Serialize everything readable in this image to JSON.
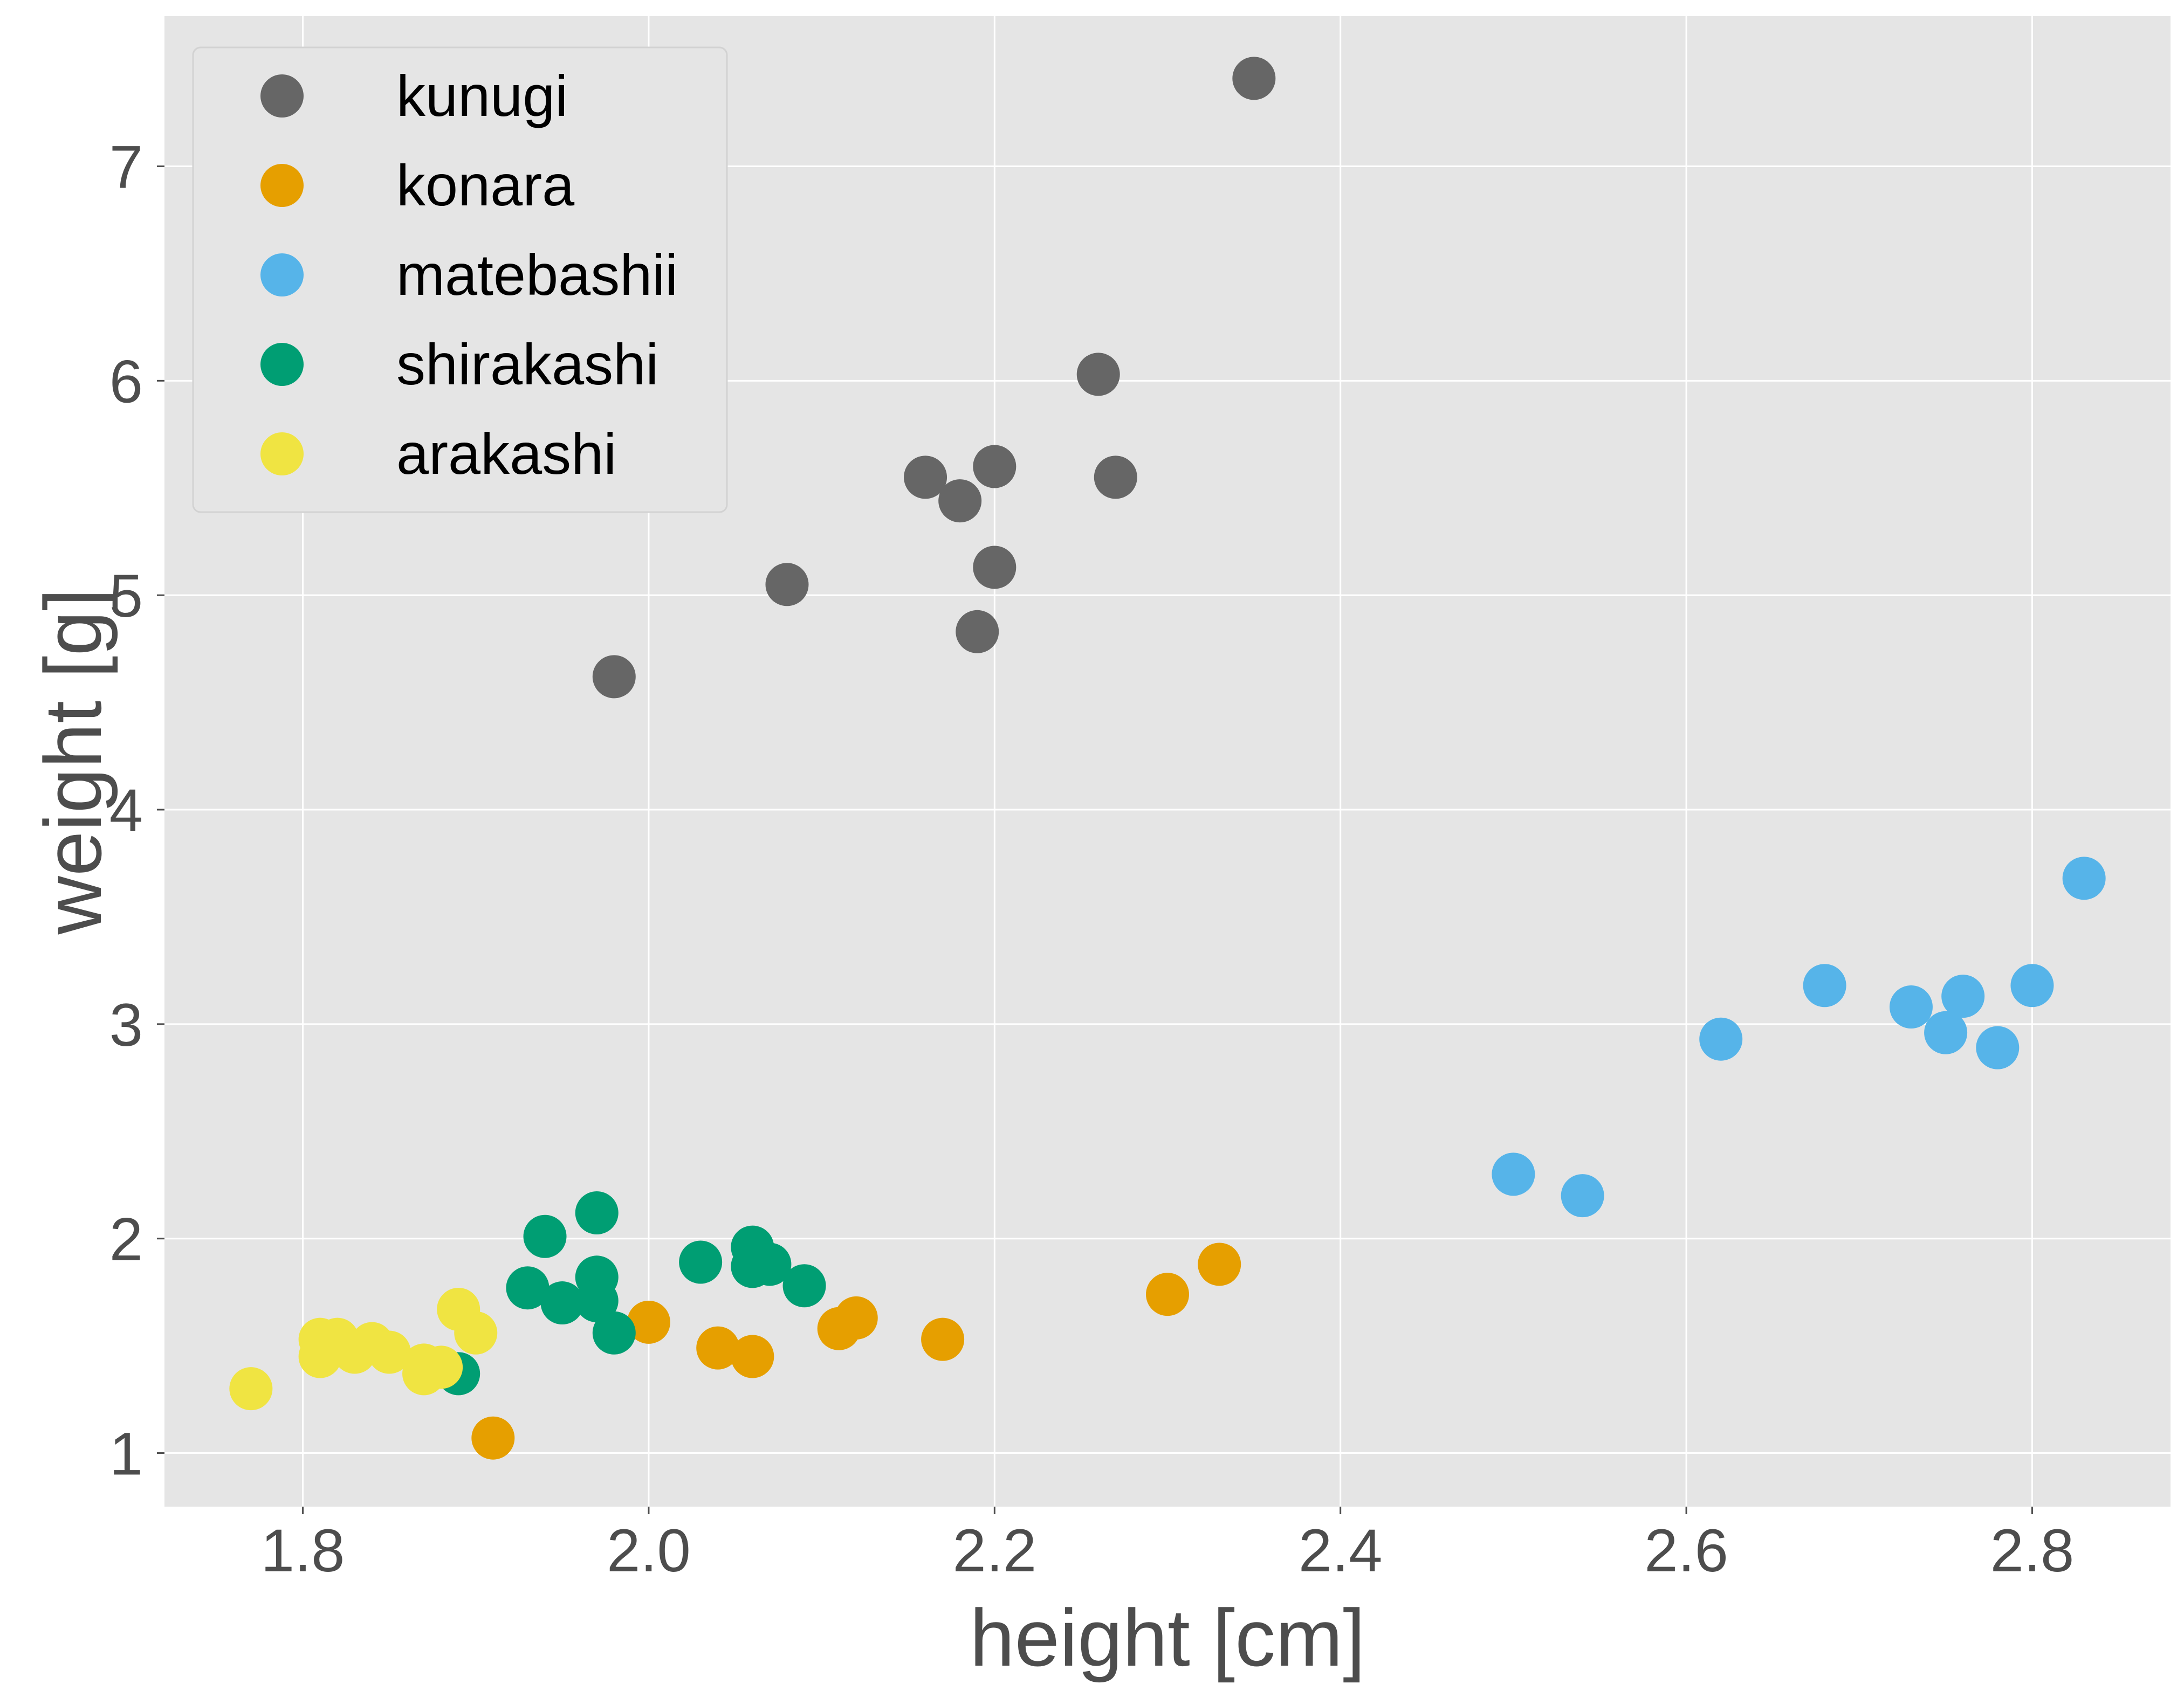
{
  "chart_data": {
    "type": "scatter",
    "title": "",
    "xlabel": "height [cm]",
    "ylabel": "weight [g]",
    "xlim": [
      1.72,
      2.88
    ],
    "ylim": [
      0.75,
      7.7
    ],
    "xticks": [
      1.8,
      2.0,
      2.2,
      2.4,
      2.6,
      2.8
    ],
    "xtick_labels": [
      "1.8",
      "2.0",
      "2.2",
      "2.4",
      "2.6",
      "2.8"
    ],
    "yticks": [
      1,
      2,
      3,
      4,
      5,
      6,
      7
    ],
    "ytick_labels": [
      "1",
      "2",
      "3",
      "4",
      "5",
      "6",
      "7"
    ],
    "grid": true,
    "legend_position": "top-left",
    "series": [
      {
        "name": "kunugi",
        "color": "#666666",
        "x": [
          2.35,
          2.26,
          2.16,
          2.2,
          2.18,
          2.27,
          2.2,
          2.08,
          2.19,
          1.98
        ],
        "y": [
          7.41,
          6.03,
          5.55,
          5.6,
          5.44,
          5.55,
          5.13,
          5.05,
          4.83,
          4.62
        ]
      },
      {
        "name": "konara",
        "color": "#e69f00",
        "x": [
          2.33,
          2.3,
          2.0,
          2.11,
          2.12,
          2.17,
          2.04,
          2.06,
          1.91
        ],
        "y": [
          1.88,
          1.74,
          1.61,
          1.58,
          1.63,
          1.53,
          1.49,
          1.45,
          1.07
        ]
      },
      {
        "name": "matebashii",
        "color": "#56b4e9",
        "x": [
          2.83,
          2.68,
          2.73,
          2.76,
          2.8,
          2.75,
          2.78,
          2.62,
          2.5,
          2.54
        ],
        "y": [
          3.68,
          3.18,
          3.08,
          3.13,
          3.18,
          2.96,
          2.89,
          2.93,
          2.3,
          2.2
        ]
      },
      {
        "name": "shirakashi",
        "color": "#009e73",
        "x": [
          1.97,
          1.94,
          2.06,
          2.03,
          2.07,
          2.06,
          1.97,
          1.93,
          2.09,
          1.95,
          1.97,
          1.98,
          1.89
        ],
        "y": [
          2.12,
          2.01,
          1.96,
          1.89,
          1.88,
          1.87,
          1.82,
          1.77,
          1.78,
          1.7,
          1.71,
          1.56,
          1.37
        ]
      },
      {
        "name": "arakashi",
        "color": "#f0e442",
        "x": [
          1.89,
          1.9,
          1.81,
          1.82,
          1.84,
          1.83,
          1.85,
          1.81,
          1.87,
          1.88,
          1.87,
          1.77
        ],
        "y": [
          1.67,
          1.56,
          1.53,
          1.53,
          1.51,
          1.47,
          1.47,
          1.45,
          1.41,
          1.4,
          1.37,
          1.3
        ]
      }
    ]
  }
}
